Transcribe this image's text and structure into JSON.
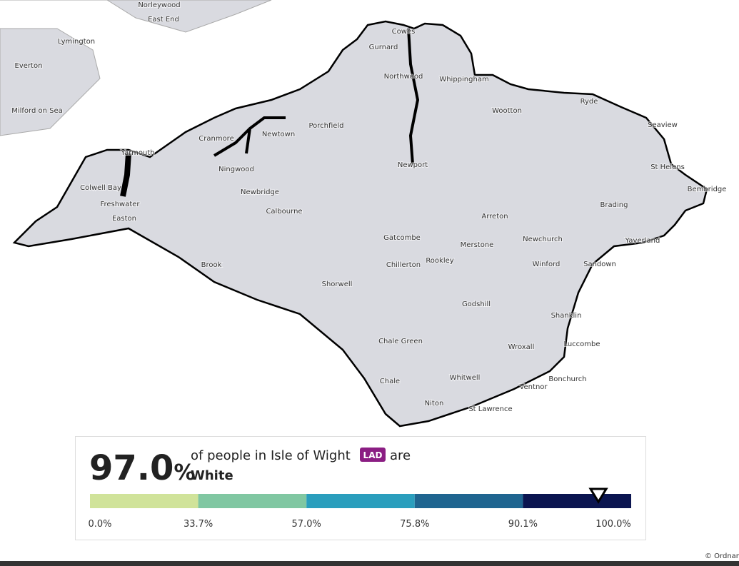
{
  "map": {
    "places": [
      "Norleywood",
      "East End",
      "Lymington",
      "Everton",
      "Milford on Sea",
      "Cowes",
      "Gurnard",
      "Northwood",
      "Whippingham",
      "Porchfield",
      "Cranmore",
      "Newtown",
      "Wootton",
      "Ryde",
      "Seaview",
      "St Helens",
      "Bembridge",
      "Yarmouth",
      "Ningwood",
      "Newport",
      "Colwell Bay",
      "Freshwater",
      "Newbridge",
      "Calbourne",
      "Easton",
      "Brading",
      "Arreton",
      "Gatcombe",
      "Merstone",
      "Newchurch",
      "Yaverland",
      "Brook",
      "Chillerton",
      "Rookley",
      "Winford",
      "Sandown",
      "Shorwell",
      "Godshill",
      "Shanklin",
      "Chale Green",
      "Wroxall",
      "Luccombe",
      "Whitwell",
      "Bonchurch",
      "Chale",
      "Ventnor",
      "Niton",
      "St Lawrence"
    ]
  },
  "legend": {
    "value": {
      "value": 97.0,
      "label": "97.0"
    },
    "unit": "%",
    "text_before": "of people in Isle of Wight",
    "badge": "LAD",
    "text_after": "are",
    "category": "White",
    "breaks": [
      {
        "value": 0,
        "label": "0.0%"
      },
      {
        "value": 33.7,
        "label": "33.7%"
      },
      {
        "value": 57.0,
        "label": "57.0%"
      },
      {
        "value": 75.8,
        "label": "75.8%"
      },
      {
        "value": 90.1,
        "label": "90.1%"
      },
      {
        "value": 100,
        "label": "100.0%"
      }
    ],
    "colors": [
      "#d0e39a",
      "#80c7a2",
      "#2a9ebd",
      "#1f6590",
      "#0b1550"
    ]
  },
  "attribution": "© Ordnan"
}
